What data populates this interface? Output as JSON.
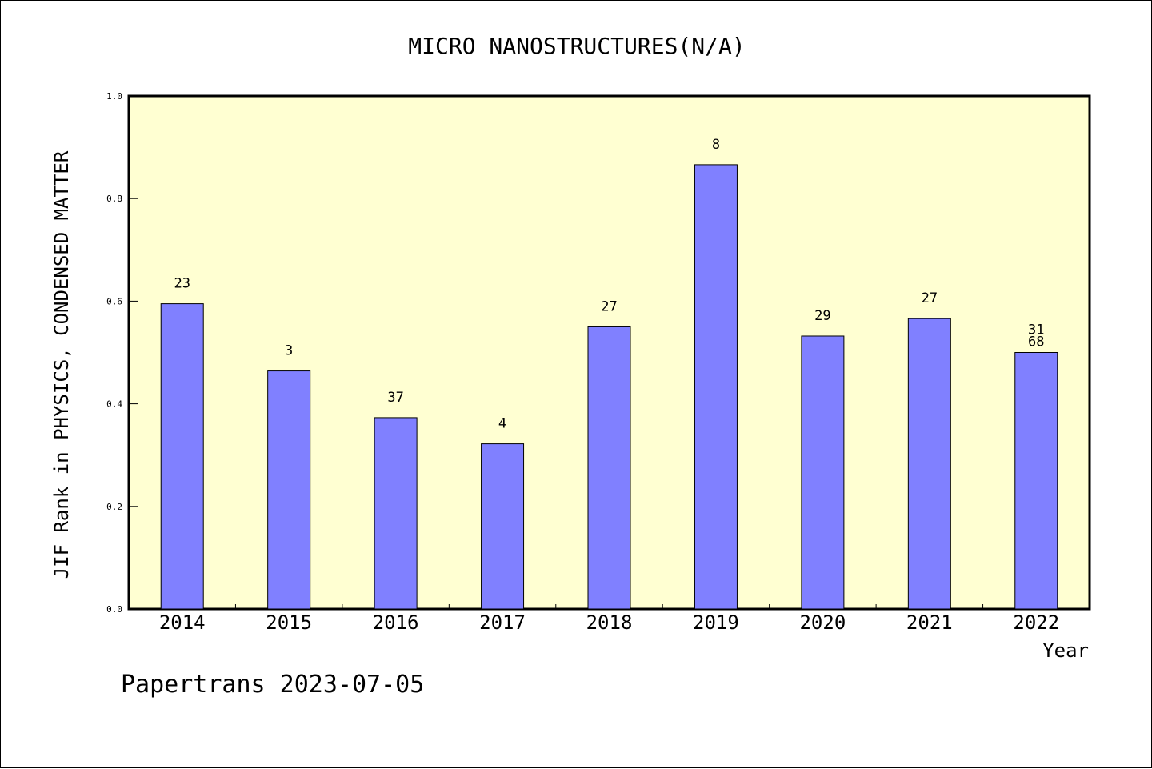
{
  "chart_data": {
    "type": "bar",
    "title": "MICRO NANOSTRUCTURES(N/A)",
    "xlabel": "Year",
    "ylabel": "JIF Rank in PHYSICS, CONDENSED MATTER",
    "categories": [
      "2014",
      "2015",
      "2016",
      "2017",
      "2018",
      "2019",
      "2020",
      "2021",
      "2022"
    ],
    "values": [
      0.595,
      0.464,
      0.373,
      0.322,
      0.55,
      0.866,
      0.532,
      0.566,
      0.5
    ],
    "data_labels": [
      "23",
      "3",
      "37",
      "4",
      "27",
      "8",
      "29",
      "27",
      "31\n68"
    ],
    "ylim": [
      0,
      1.0
    ],
    "yticks": [
      "0.0",
      "0.2",
      "0.4",
      "0.6",
      "0.8",
      "1.0"
    ],
    "ytick_values": [
      0,
      0.2,
      0.4,
      0.6,
      0.8,
      1.0
    ],
    "grid": false,
    "legend": "none",
    "colors": {
      "bar": "#8080ff",
      "plot_background": "#ffffd2",
      "axis": "#000000"
    }
  },
  "footer": {
    "text": "Papertrans 2023-07-05"
  }
}
